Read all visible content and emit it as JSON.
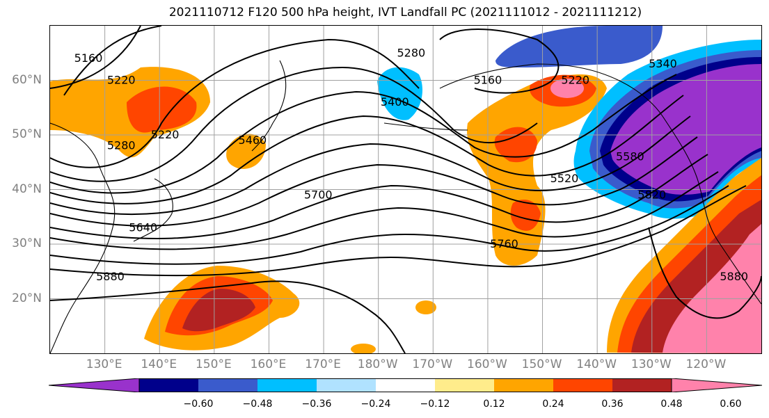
{
  "title": "2021110712 F120 500 hPa height, IVT Landfall PC (2021111012 - 2021111212)",
  "map": {
    "lon_range": [
      120,
      250
    ],
    "lat_range": [
      10,
      70
    ],
    "lat_labels": [
      {
        "lat": 60,
        "text": "60°N"
      },
      {
        "lat": 50,
        "text": "50°N"
      },
      {
        "lat": 40,
        "text": "40°N"
      },
      {
        "lat": 30,
        "text": "30°N"
      },
      {
        "lat": 20,
        "text": "20°N"
      }
    ],
    "lon_labels": [
      {
        "lon": 130,
        "text": "130°E"
      },
      {
        "lon": 140,
        "text": "140°E"
      },
      {
        "lon": 150,
        "text": "150°E"
      },
      {
        "lon": 160,
        "text": "160°E"
      },
      {
        "lon": 170,
        "text": "170°E"
      },
      {
        "lon": 180,
        "text": "180°W"
      },
      {
        "lon": 190,
        "text": "170°W"
      },
      {
        "lon": 200,
        "text": "160°W"
      },
      {
        "lon": 210,
        "text": "150°W"
      },
      {
        "lon": 220,
        "text": "140°W"
      },
      {
        "lon": 230,
        "text": "130°W"
      },
      {
        "lon": 240,
        "text": "120°W"
      }
    ],
    "contour_labels": [
      {
        "text": "5160",
        "lon": 127,
        "lat": 64
      },
      {
        "text": "5220",
        "lon": 133,
        "lat": 60
      },
      {
        "text": "5280",
        "lon": 186,
        "lat": 65
      },
      {
        "text": "5160",
        "lon": 200,
        "lat": 60
      },
      {
        "text": "5220",
        "lon": 216,
        "lat": 60
      },
      {
        "text": "5400",
        "lon": 183,
        "lat": 56
      },
      {
        "text": "5340",
        "lon": 232,
        "lat": 63
      },
      {
        "text": "5220",
        "lon": 141,
        "lat": 50
      },
      {
        "text": "5280",
        "lon": 133,
        "lat": 48
      },
      {
        "text": "5460",
        "lon": 157,
        "lat": 49
      },
      {
        "text": "5580",
        "lon": 226,
        "lat": 46
      },
      {
        "text": "5520",
        "lon": 214,
        "lat": 42
      },
      {
        "text": "5820",
        "lon": 230,
        "lat": 39
      },
      {
        "text": "5700",
        "lon": 169,
        "lat": 39
      },
      {
        "text": "5640",
        "lon": 137,
        "lat": 33
      },
      {
        "text": "5760",
        "lon": 203,
        "lat": 30
      },
      {
        "text": "5880",
        "lon": 131,
        "lat": 24
      },
      {
        "text": "5880",
        "lon": 245,
        "lat": 24
      }
    ]
  },
  "colorbar": {
    "colors": [
      "#9932cc",
      "#00008b",
      "#3a5bcc",
      "#00bfff",
      "#b0e2ff",
      "#ffffff",
      "#ffec8b",
      "#ffa500",
      "#ff4500",
      "#b22222",
      "#ff82ab"
    ],
    "tick_labels": [
      "−0.60",
      "−0.48",
      "−0.36",
      "−0.24",
      "−0.12",
      "0.12",
      "0.24",
      "0.36",
      "0.48",
      "0.60"
    ]
  }
}
